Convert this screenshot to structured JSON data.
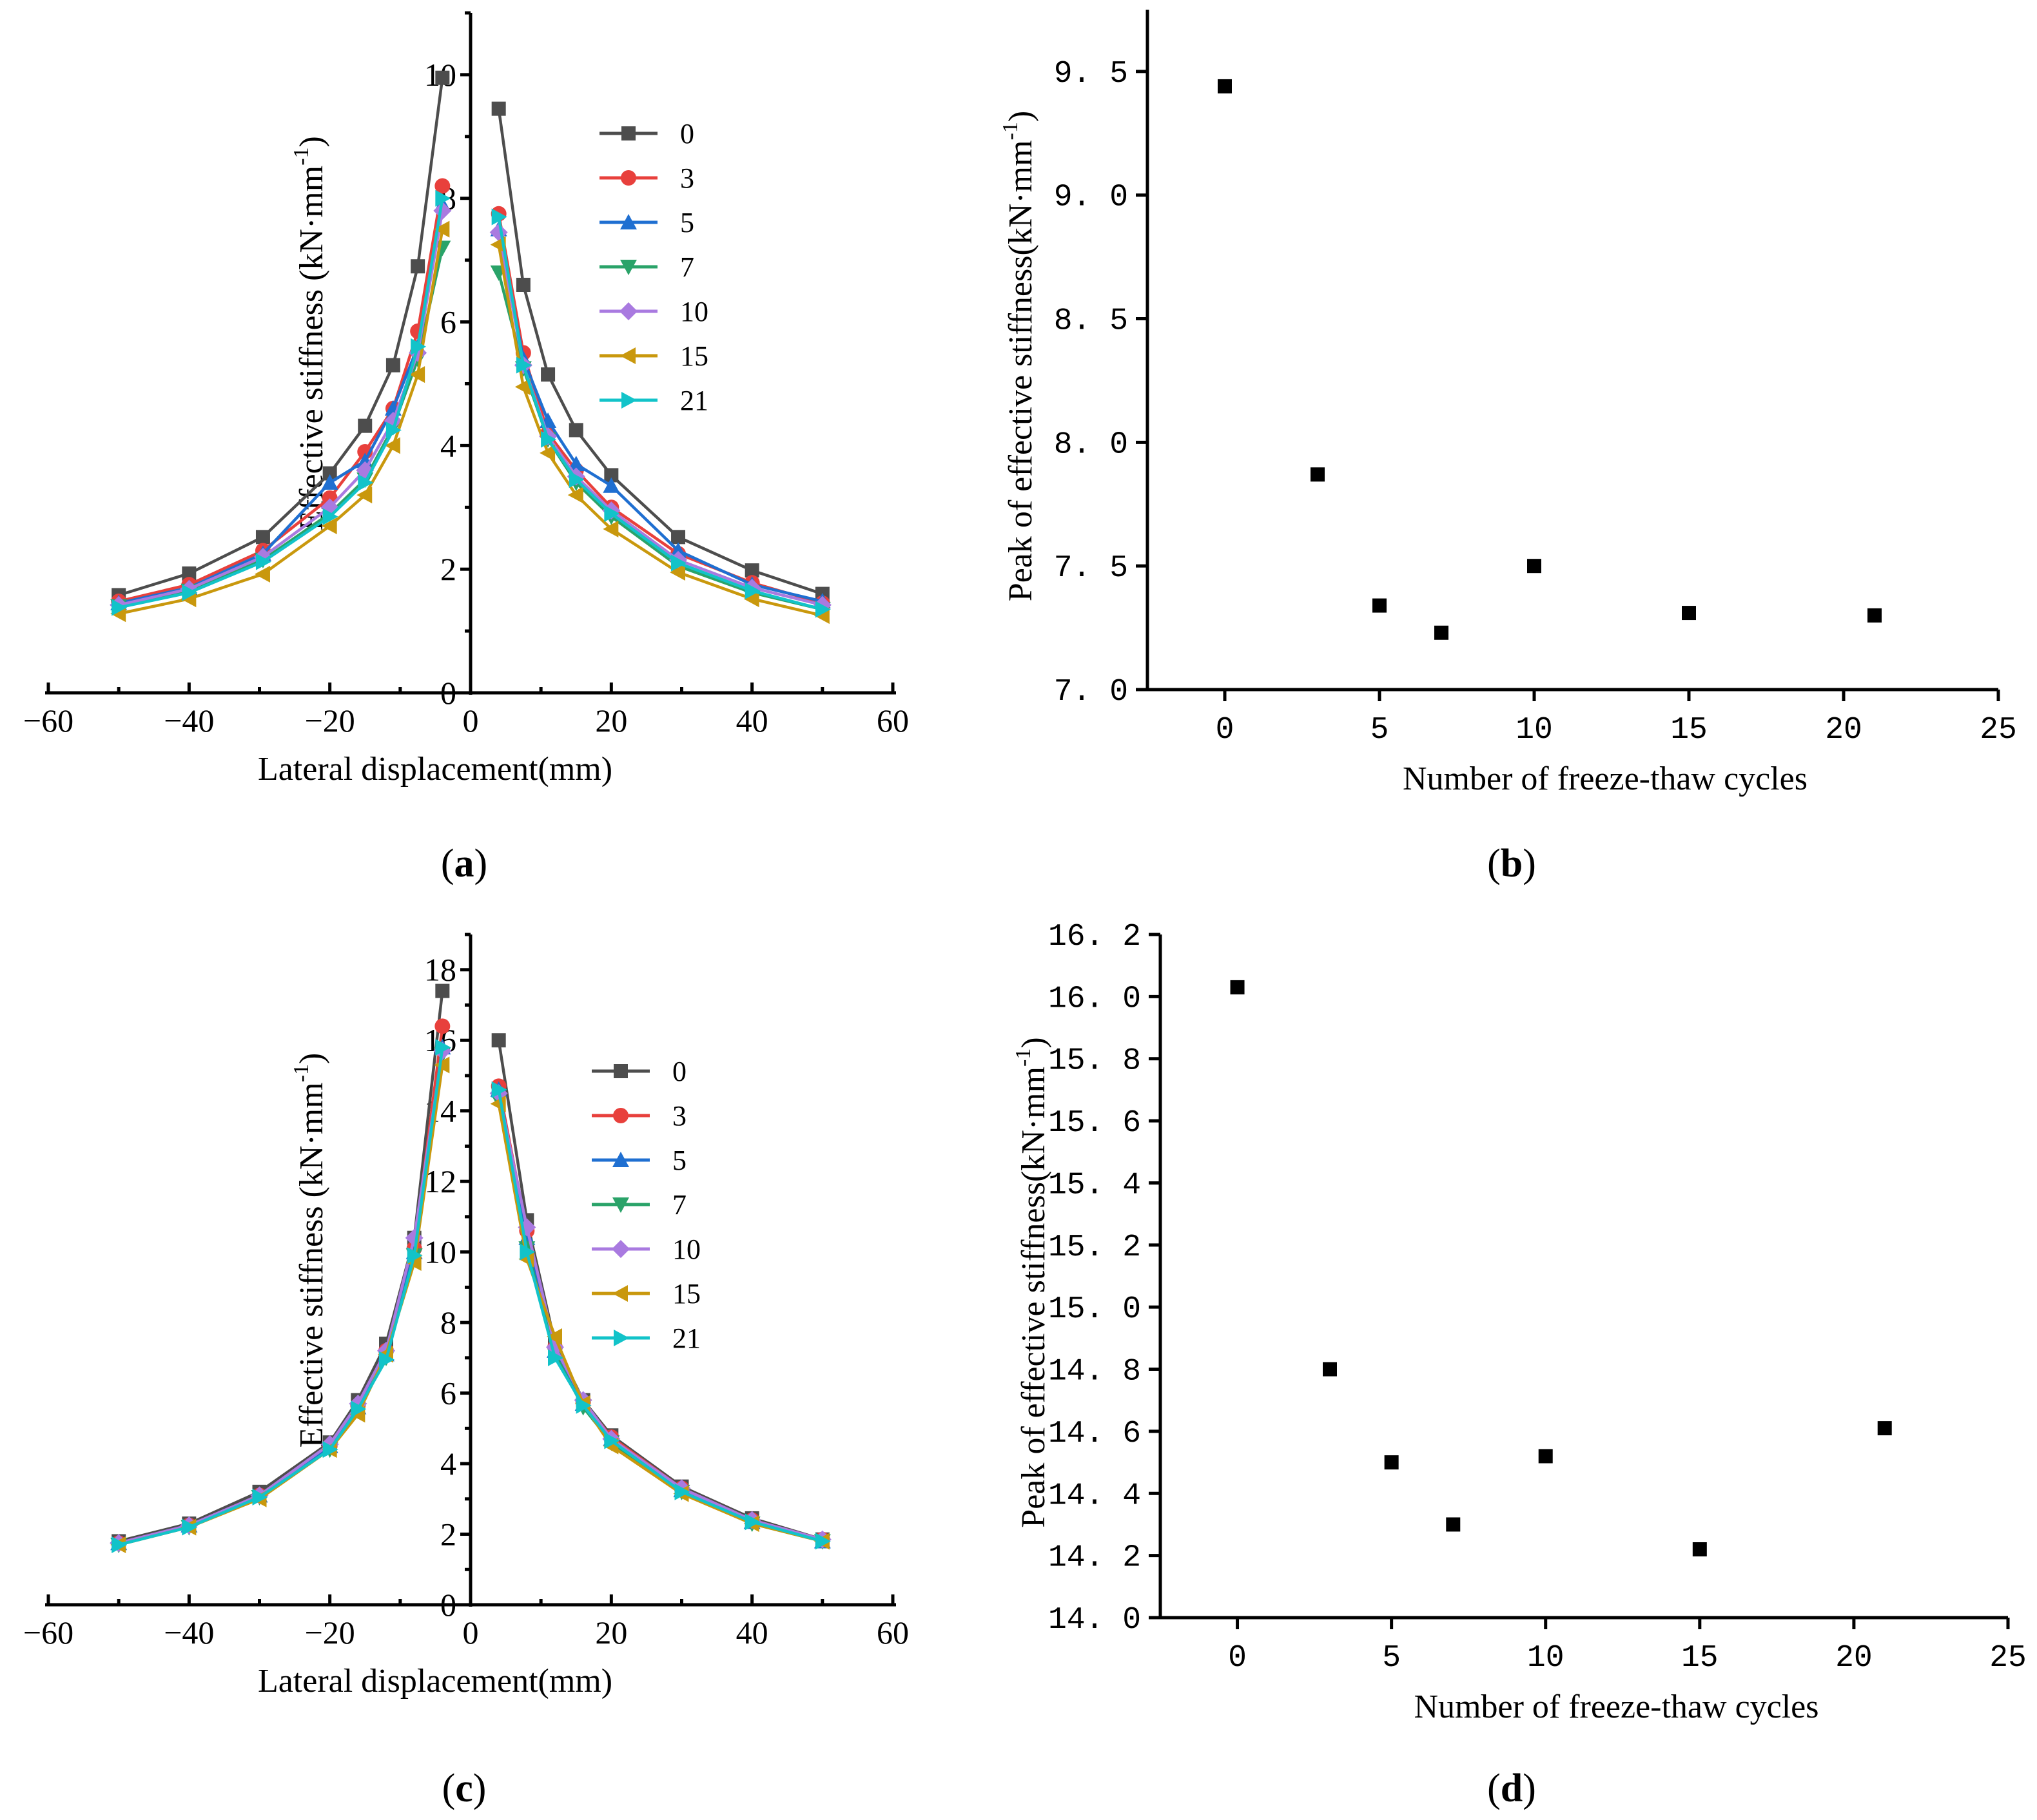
{
  "figure": {
    "panel_labels": [
      "a",
      "b",
      "c",
      "d"
    ]
  },
  "chart_data": [
    {
      "id": "a",
      "type": "line",
      "xlabel": "Lateral displacement(mm)",
      "ylabel": "Effective stiffness (kN·mm",
      "ylabel_sup": "-1",
      "ylabel_close": ")",
      "xlim": [
        -60,
        60
      ],
      "ylim": [
        0,
        11
      ],
      "xticks": [
        -60,
        -40,
        -20,
        0,
        20,
        40,
        60
      ],
      "yticks": [
        0,
        2,
        4,
        6,
        8,
        10
      ],
      "xtick_labels": [
        "−60",
        "−40",
        "−20",
        "0",
        "20",
        "40",
        "60"
      ],
      "ytick_labels": [
        "0",
        "2",
        "4",
        "6",
        "8",
        "10"
      ],
      "legend_title": "",
      "x": [
        -50,
        -40,
        -29.5,
        -20,
        -15,
        -11,
        -7.5,
        -4,
        4,
        7.5,
        11,
        15,
        20,
        29.5,
        40,
        50
      ],
      "series": [
        {
          "name": "0",
          "color": "#4d4d4d",
          "marker": "square",
          "values": [
            1.58,
            1.93,
            2.52,
            3.55,
            4.32,
            5.3,
            6.9,
            9.95,
            9.45,
            6.6,
            5.15,
            4.25,
            3.52,
            2.52,
            1.98,
            1.6
          ]
        },
        {
          "name": "3",
          "color": "#e8403c",
          "marker": "circle",
          "values": [
            1.48,
            1.75,
            2.3,
            3.15,
            3.9,
            4.6,
            5.85,
            8.2,
            7.75,
            5.5,
            4.2,
            3.6,
            3.0,
            2.25,
            1.78,
            1.45
          ]
        },
        {
          "name": "5",
          "color": "#1f6fd1",
          "marker": "triangle-up",
          "values": [
            1.45,
            1.7,
            2.25,
            3.4,
            3.75,
            4.6,
            5.6,
            7.9,
            7.5,
            5.4,
            4.4,
            3.7,
            3.35,
            2.3,
            1.75,
            1.48
          ]
        },
        {
          "name": "7",
          "color": "#2aa369",
          "marker": "triangle-down",
          "values": [
            1.4,
            1.65,
            2.15,
            2.9,
            3.45,
            4.3,
            5.4,
            7.2,
            6.8,
            5.25,
            4.1,
            3.4,
            2.85,
            2.05,
            1.62,
            1.35
          ]
        },
        {
          "name": "10",
          "color": "#a97ae0",
          "marker": "diamond",
          "values": [
            1.42,
            1.68,
            2.2,
            3.0,
            3.6,
            4.4,
            5.5,
            7.8,
            7.45,
            5.3,
            4.15,
            3.5,
            2.95,
            2.15,
            1.7,
            1.42
          ]
        },
        {
          "name": "15",
          "color": "#c9980d",
          "marker": "triangle-left",
          "values": [
            1.28,
            1.52,
            1.92,
            2.7,
            3.2,
            4.0,
            5.15,
            7.5,
            7.25,
            4.95,
            3.88,
            3.2,
            2.65,
            1.95,
            1.52,
            1.25
          ]
        },
        {
          "name": "21",
          "color": "#12c3c9",
          "marker": "triangle-right",
          "values": [
            1.38,
            1.62,
            2.12,
            2.85,
            3.4,
            4.25,
            5.6,
            8.0,
            7.7,
            5.3,
            4.1,
            3.45,
            2.9,
            2.1,
            1.65,
            1.35
          ]
        }
      ]
    },
    {
      "id": "b",
      "type": "scatter",
      "xlabel": "Number of freeze-thaw cycles",
      "ylabel": "Peak of effective stiffness(kN·mm",
      "ylabel_sup": "-1",
      "ylabel_close": ")",
      "xlim": [
        -2.5,
        25
      ],
      "ylim": [
        7.0,
        9.75
      ],
      "xticks": [
        0,
        5,
        10,
        15,
        20,
        25
      ],
      "yticks": [
        7.0,
        7.5,
        8.0,
        8.5,
        9.0,
        9.5
      ],
      "xtick_labels": [
        "0",
        "5",
        "10",
        "15",
        "20",
        "25"
      ],
      "ytick_labels": [
        "7. 0",
        "7. 5",
        "8. 0",
        "8. 5",
        "9. 0",
        "9. 5"
      ],
      "x": [
        0,
        3,
        5,
        7,
        10,
        15,
        21
      ],
      "values": [
        9.44,
        7.87,
        7.34,
        7.23,
        7.5,
        7.31,
        7.3
      ]
    },
    {
      "id": "c",
      "type": "line",
      "xlabel": "Lateral displacement(mm)",
      "ylabel": "Effective stiffness (kN·mm",
      "ylabel_sup": "-1",
      "ylabel_close": ")",
      "xlim": [
        -60,
        60
      ],
      "ylim": [
        0,
        19
      ],
      "xticks": [
        -60,
        -40,
        -20,
        0,
        20,
        40,
        60
      ],
      "yticks": [
        0,
        2,
        4,
        6,
        8,
        10,
        12,
        14,
        16,
        18
      ],
      "xtick_labels": [
        "−60",
        "−40",
        "−20",
        "0",
        "20",
        "40",
        "60"
      ],
      "ytick_labels": [
        "0",
        "2",
        "4",
        "6",
        "8",
        "10",
        "12",
        "14",
        "16",
        "18"
      ],
      "x": [
        -50,
        -40,
        -30,
        -20,
        -16,
        -12,
        -8,
        -4,
        4,
        8,
        12,
        16,
        20,
        30,
        40,
        50
      ],
      "series": [
        {
          "name": "0",
          "color": "#4d4d4d",
          "marker": "square",
          "values": [
            1.8,
            2.3,
            3.2,
            4.6,
            5.8,
            7.4,
            10.4,
            17.4,
            16.0,
            10.9,
            7.4,
            5.8,
            4.8,
            3.35,
            2.45,
            1.85
          ]
        },
        {
          "name": "3",
          "color": "#e8403c",
          "marker": "circle",
          "values": [
            1.75,
            2.25,
            3.1,
            4.5,
            5.65,
            7.2,
            10.1,
            16.4,
            14.7,
            10.6,
            7.3,
            5.75,
            4.75,
            3.3,
            2.4,
            1.85
          ]
        },
        {
          "name": "5",
          "color": "#1f6fd1",
          "marker": "triangle-up",
          "values": [
            1.75,
            2.25,
            3.1,
            4.5,
            5.6,
            7.1,
            10.0,
            15.8,
            14.6,
            10.4,
            7.2,
            5.7,
            4.7,
            3.25,
            2.35,
            1.8
          ]
        },
        {
          "name": "7",
          "color": "#2aa369",
          "marker": "triangle-down",
          "values": [
            1.7,
            2.2,
            3.05,
            4.4,
            5.5,
            7.0,
            9.9,
            15.6,
            14.3,
            10.1,
            7.1,
            5.6,
            4.6,
            3.2,
            2.3,
            1.8
          ]
        },
        {
          "name": "10",
          "color": "#a97ae0",
          "marker": "diamond",
          "values": [
            1.75,
            2.25,
            3.1,
            4.55,
            5.7,
            7.2,
            10.4,
            15.7,
            14.5,
            10.7,
            7.3,
            5.8,
            4.7,
            3.3,
            2.4,
            1.85
          ]
        },
        {
          "name": "15",
          "color": "#c9980d",
          "marker": "triangle-left",
          "values": [
            1.7,
            2.2,
            3.0,
            4.4,
            5.4,
            7.1,
            9.7,
            15.3,
            14.2,
            9.8,
            7.6,
            5.7,
            4.5,
            3.15,
            2.3,
            1.8
          ]
        },
        {
          "name": "21",
          "color": "#12c3c9",
          "marker": "triangle-right",
          "values": [
            1.7,
            2.2,
            3.05,
            4.4,
            5.55,
            6.95,
            9.9,
            15.8,
            14.6,
            10.0,
            7.0,
            5.65,
            4.65,
            3.2,
            2.35,
            1.8
          ]
        }
      ]
    },
    {
      "id": "d",
      "type": "scatter",
      "xlabel": "Number of freeze-thaw cycles",
      "ylabel": "Peak of effective stiffness(kN·mm",
      "ylabel_sup": "-1",
      "ylabel_close": ")",
      "xlim": [
        -2.5,
        25
      ],
      "ylim": [
        14.0,
        16.2
      ],
      "xticks": [
        0,
        5,
        10,
        15,
        20,
        25
      ],
      "yticks": [
        14.0,
        14.2,
        14.4,
        14.6,
        14.8,
        15.0,
        15.2,
        15.4,
        15.6,
        15.8,
        16.0,
        16.2
      ],
      "xtick_labels": [
        "0",
        "5",
        "10",
        "15",
        "20",
        "25"
      ],
      "ytick_labels": [
        "14. 0",
        "14. 2",
        "14. 4",
        "14. 6",
        "14. 8",
        "15. 0",
        "15. 2",
        "15. 4",
        "15. 6",
        "15. 8",
        "16. 0",
        "16. 2"
      ],
      "x": [
        0,
        3,
        5,
        7,
        10,
        15,
        21
      ],
      "values": [
        16.03,
        14.8,
        14.5,
        14.3,
        14.52,
        14.22,
        14.61
      ]
    }
  ]
}
